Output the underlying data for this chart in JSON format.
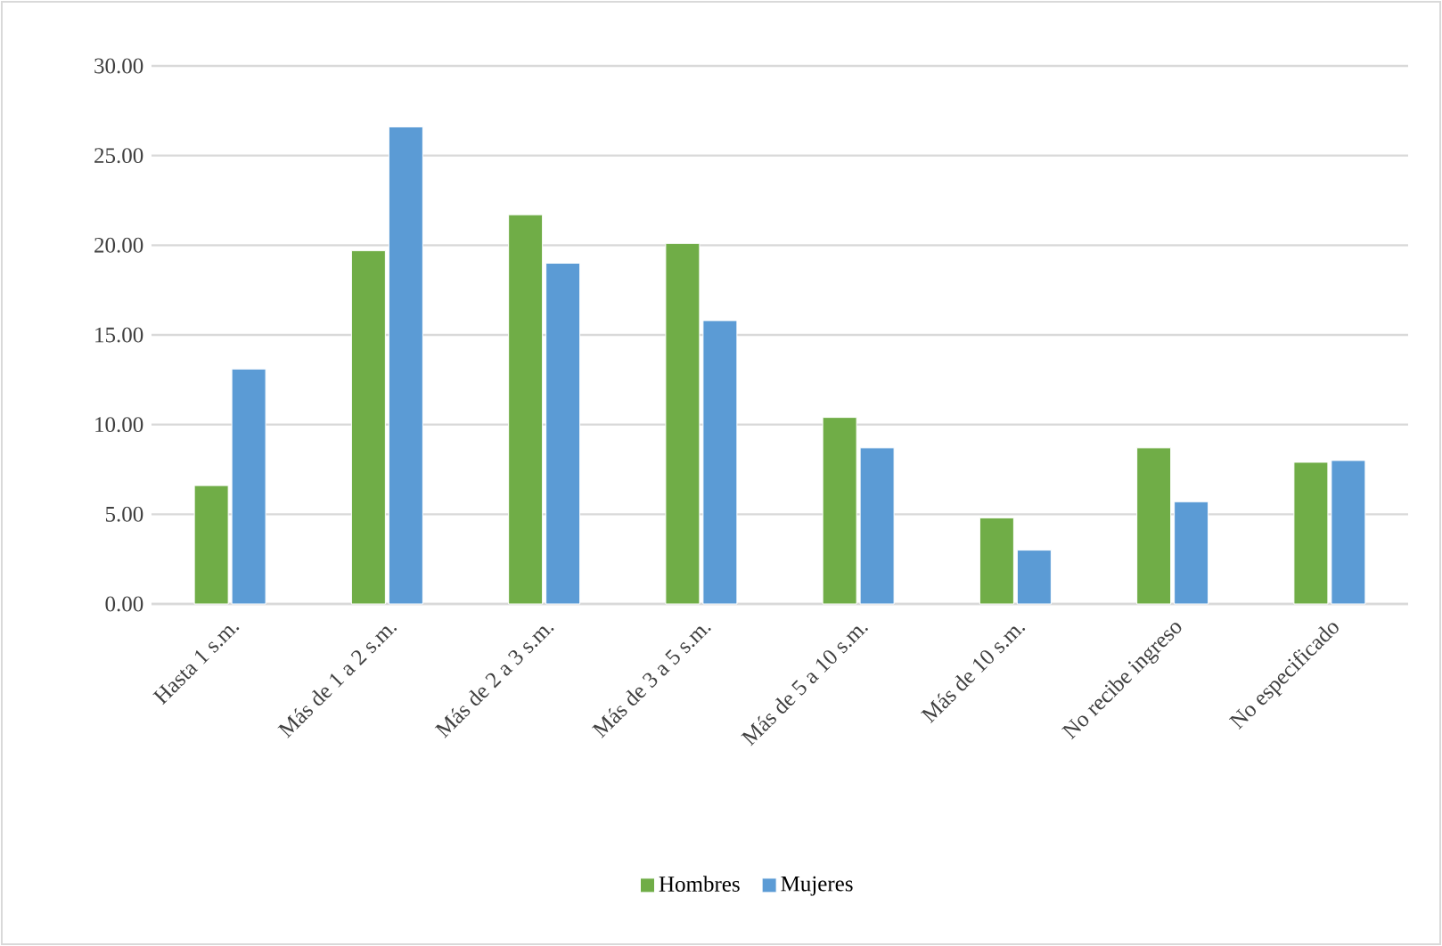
{
  "chart_data": {
    "type": "bar",
    "categories": [
      "Hasta 1 s.m.",
      "Más de 1 a 2 s.m.",
      "Más de 2 a 3 s.m.",
      "Más de 3 a 5 s.m.",
      "Más de 5 a 10 s.m.",
      "Más de 10 s.m.",
      "No recibe ingreso",
      "No especificado"
    ],
    "series": [
      {
        "name": "Hombres",
        "color": "#70ad47",
        "values": [
          6.6,
          19.7,
          21.7,
          20.1,
          10.4,
          4.8,
          8.7,
          7.9
        ]
      },
      {
        "name": "Mujeres",
        "color": "#5b9bd5",
        "values": [
          13.1,
          26.6,
          19.0,
          15.8,
          8.7,
          3.0,
          5.7,
          8.0
        ]
      }
    ],
    "ylim": [
      0,
      30
    ],
    "yticks": [
      {
        "value": 0,
        "label": "0.00"
      },
      {
        "value": 5,
        "label": "5.00"
      },
      {
        "value": 10,
        "label": "10.00"
      },
      {
        "value": 15,
        "label": "15.00"
      },
      {
        "value": 20,
        "label": "20.00"
      },
      {
        "value": 25,
        "label": "25.00"
      },
      {
        "value": 30,
        "label": "30.00"
      }
    ],
    "grid": "y",
    "legend": "bottom"
  }
}
